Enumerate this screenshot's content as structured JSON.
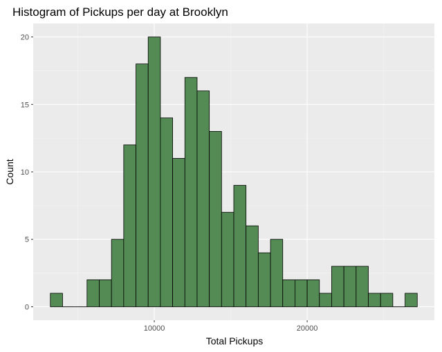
{
  "chart_data": {
    "type": "bar",
    "title": "Histogram of Pickups per day at Brooklyn",
    "xlabel": "Total Pickups",
    "ylabel": "Count",
    "bin_width": 800,
    "bins": [
      {
        "x0": 3200,
        "x1": 4000,
        "count": 1
      },
      {
        "x0": 4000,
        "x1": 4800,
        "count": 0
      },
      {
        "x0": 4800,
        "x1": 5600,
        "count": 0
      },
      {
        "x0": 5600,
        "x1": 6400,
        "count": 2
      },
      {
        "x0": 6400,
        "x1": 7200,
        "count": 2
      },
      {
        "x0": 7200,
        "x1": 8000,
        "count": 5
      },
      {
        "x0": 8000,
        "x1": 8800,
        "count": 12
      },
      {
        "x0": 8800,
        "x1": 9600,
        "count": 18
      },
      {
        "x0": 9600,
        "x1": 10400,
        "count": 20
      },
      {
        "x0": 10400,
        "x1": 11200,
        "count": 14
      },
      {
        "x0": 11200,
        "x1": 12000,
        "count": 11
      },
      {
        "x0": 12000,
        "x1": 12800,
        "count": 17
      },
      {
        "x0": 12800,
        "x1": 13600,
        "count": 16
      },
      {
        "x0": 13600,
        "x1": 14400,
        "count": 13
      },
      {
        "x0": 14400,
        "x1": 15200,
        "count": 7
      },
      {
        "x0": 15200,
        "x1": 16000,
        "count": 9
      },
      {
        "x0": 16000,
        "x1": 16800,
        "count": 6
      },
      {
        "x0": 16800,
        "x1": 17600,
        "count": 4
      },
      {
        "x0": 17600,
        "x1": 18400,
        "count": 5
      },
      {
        "x0": 18400,
        "x1": 19200,
        "count": 2
      },
      {
        "x0": 19200,
        "x1": 20000,
        "count": 2
      },
      {
        "x0": 20000,
        "x1": 20800,
        "count": 2
      },
      {
        "x0": 20800,
        "x1": 21600,
        "count": 1
      },
      {
        "x0": 21600,
        "x1": 22400,
        "count": 3
      },
      {
        "x0": 22400,
        "x1": 23200,
        "count": 3
      },
      {
        "x0": 23200,
        "x1": 24000,
        "count": 3
      },
      {
        "x0": 24000,
        "x1": 24800,
        "count": 1
      },
      {
        "x0": 24800,
        "x1": 25600,
        "count": 1
      },
      {
        "x0": 25600,
        "x1": 26400,
        "count": 0
      },
      {
        "x0": 26400,
        "x1": 27200,
        "count": 1
      }
    ],
    "xlim": [
      2080,
      28320
    ],
    "ylim": [
      -1,
      21
    ],
    "x_ticks": [
      10000,
      20000
    ],
    "x_tick_labels": [
      "10000",
      "20000"
    ],
    "y_ticks": [
      0,
      5,
      10,
      15,
      20
    ],
    "y_tick_labels": [
      "0",
      "5",
      "10",
      "15",
      "20"
    ],
    "grid": true,
    "legend": "none",
    "colors": {
      "bar_fill": "#548b54",
      "bar_stroke": "#000000",
      "panel_bg": "#ebebeb",
      "grid_major": "#ffffff",
      "grid_minor": "#f5f5f5"
    }
  }
}
